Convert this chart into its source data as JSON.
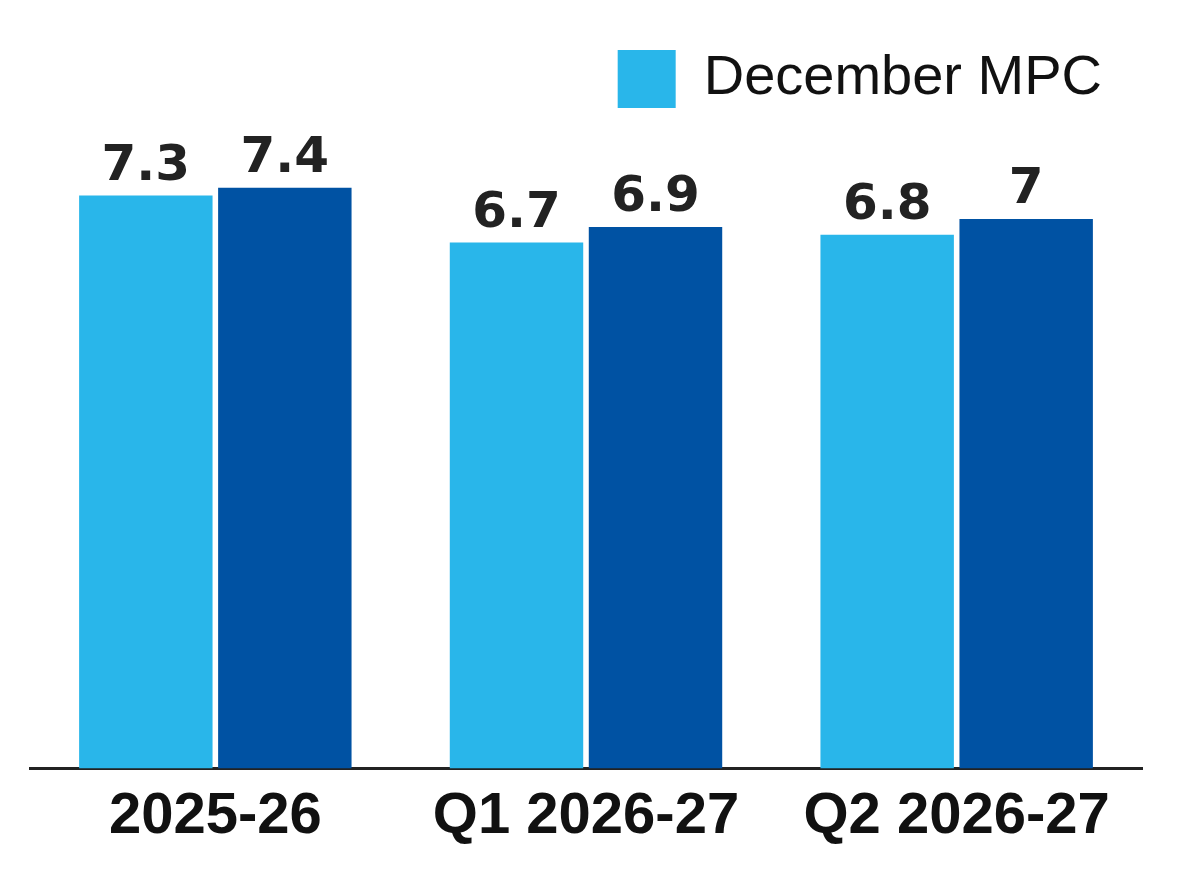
{
  "chart_data": {
    "type": "bar",
    "categories": [
      "2025-26",
      "Q1 2026-27",
      "Q2 2026-27"
    ],
    "series": [
      {
        "name": "December MPC",
        "color": "#29b6ea",
        "values": [
          7.3,
          6.7,
          6.8
        ]
      },
      {
        "color": "#0052a3",
        "values": [
          7.4,
          6.9,
          7
        ]
      }
    ],
    "data_labels": true,
    "legend": "top right",
    "grid": false
  }
}
